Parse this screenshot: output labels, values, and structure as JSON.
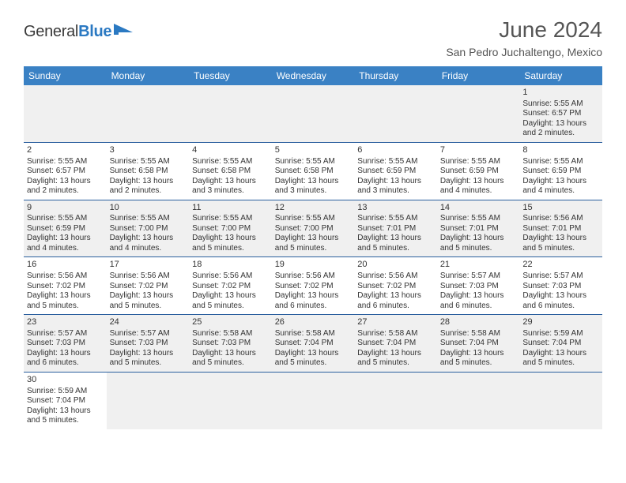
{
  "brand": {
    "text1": "General",
    "text2": "Blue",
    "accent_color": "#2b79c2"
  },
  "title": "June 2024",
  "location": "San Pedro Juchaltengo, Mexico",
  "header_bg": "#3a81c4",
  "row_alt_bg": "#f0f0f0",
  "border_color": "#2a5f9e",
  "days_of_week": [
    "Sunday",
    "Monday",
    "Tuesday",
    "Wednesday",
    "Thursday",
    "Friday",
    "Saturday"
  ],
  "weeks": [
    [
      null,
      null,
      null,
      null,
      null,
      null,
      {
        "d": "1",
        "sr": "5:55 AM",
        "ss": "6:57 PM",
        "dl": "13 hours and 2 minutes."
      }
    ],
    [
      {
        "d": "2",
        "sr": "5:55 AM",
        "ss": "6:57 PM",
        "dl": "13 hours and 2 minutes."
      },
      {
        "d": "3",
        "sr": "5:55 AM",
        "ss": "6:58 PM",
        "dl": "13 hours and 2 minutes."
      },
      {
        "d": "4",
        "sr": "5:55 AM",
        "ss": "6:58 PM",
        "dl": "13 hours and 3 minutes."
      },
      {
        "d": "5",
        "sr": "5:55 AM",
        "ss": "6:58 PM",
        "dl": "13 hours and 3 minutes."
      },
      {
        "d": "6",
        "sr": "5:55 AM",
        "ss": "6:59 PM",
        "dl": "13 hours and 3 minutes."
      },
      {
        "d": "7",
        "sr": "5:55 AM",
        "ss": "6:59 PM",
        "dl": "13 hours and 4 minutes."
      },
      {
        "d": "8",
        "sr": "5:55 AM",
        "ss": "6:59 PM",
        "dl": "13 hours and 4 minutes."
      }
    ],
    [
      {
        "d": "9",
        "sr": "5:55 AM",
        "ss": "6:59 PM",
        "dl": "13 hours and 4 minutes."
      },
      {
        "d": "10",
        "sr": "5:55 AM",
        "ss": "7:00 PM",
        "dl": "13 hours and 4 minutes."
      },
      {
        "d": "11",
        "sr": "5:55 AM",
        "ss": "7:00 PM",
        "dl": "13 hours and 5 minutes."
      },
      {
        "d": "12",
        "sr": "5:55 AM",
        "ss": "7:00 PM",
        "dl": "13 hours and 5 minutes."
      },
      {
        "d": "13",
        "sr": "5:55 AM",
        "ss": "7:01 PM",
        "dl": "13 hours and 5 minutes."
      },
      {
        "d": "14",
        "sr": "5:55 AM",
        "ss": "7:01 PM",
        "dl": "13 hours and 5 minutes."
      },
      {
        "d": "15",
        "sr": "5:56 AM",
        "ss": "7:01 PM",
        "dl": "13 hours and 5 minutes."
      }
    ],
    [
      {
        "d": "16",
        "sr": "5:56 AM",
        "ss": "7:02 PM",
        "dl": "13 hours and 5 minutes."
      },
      {
        "d": "17",
        "sr": "5:56 AM",
        "ss": "7:02 PM",
        "dl": "13 hours and 5 minutes."
      },
      {
        "d": "18",
        "sr": "5:56 AM",
        "ss": "7:02 PM",
        "dl": "13 hours and 5 minutes."
      },
      {
        "d": "19",
        "sr": "5:56 AM",
        "ss": "7:02 PM",
        "dl": "13 hours and 6 minutes."
      },
      {
        "d": "20",
        "sr": "5:56 AM",
        "ss": "7:02 PM",
        "dl": "13 hours and 6 minutes."
      },
      {
        "d": "21",
        "sr": "5:57 AM",
        "ss": "7:03 PM",
        "dl": "13 hours and 6 minutes."
      },
      {
        "d": "22",
        "sr": "5:57 AM",
        "ss": "7:03 PM",
        "dl": "13 hours and 6 minutes."
      }
    ],
    [
      {
        "d": "23",
        "sr": "5:57 AM",
        "ss": "7:03 PM",
        "dl": "13 hours and 6 minutes."
      },
      {
        "d": "24",
        "sr": "5:57 AM",
        "ss": "7:03 PM",
        "dl": "13 hours and 5 minutes."
      },
      {
        "d": "25",
        "sr": "5:58 AM",
        "ss": "7:03 PM",
        "dl": "13 hours and 5 minutes."
      },
      {
        "d": "26",
        "sr": "5:58 AM",
        "ss": "7:04 PM",
        "dl": "13 hours and 5 minutes."
      },
      {
        "d": "27",
        "sr": "5:58 AM",
        "ss": "7:04 PM",
        "dl": "13 hours and 5 minutes."
      },
      {
        "d": "28",
        "sr": "5:58 AM",
        "ss": "7:04 PM",
        "dl": "13 hours and 5 minutes."
      },
      {
        "d": "29",
        "sr": "5:59 AM",
        "ss": "7:04 PM",
        "dl": "13 hours and 5 minutes."
      }
    ],
    [
      {
        "d": "30",
        "sr": "5:59 AM",
        "ss": "7:04 PM",
        "dl": "13 hours and 5 minutes."
      },
      null,
      null,
      null,
      null,
      null,
      null
    ]
  ],
  "labels": {
    "sunrise": "Sunrise:",
    "sunset": "Sunset:",
    "daylight": "Daylight:"
  }
}
